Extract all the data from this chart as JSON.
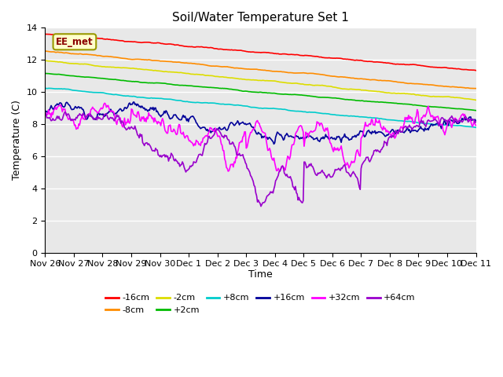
{
  "title": "Soil/Water Temperature Set 1",
  "ylabel": "Temperature (C)",
  "xlabel": "Time",
  "annotation": "EE_met",
  "ylim": [
    0,
    14
  ],
  "background_color": "#ffffff",
  "plot_bg_color": "#e8e8e8",
  "xtick_labels": [
    "Nov 26",
    "Nov 27",
    "Nov 28",
    "Nov 29",
    "Nov 30",
    "Dec 1",
    "Dec 2",
    "Dec 3",
    "Dec 4",
    "Dec 5",
    "Dec 6",
    "Dec 7",
    "Dec 8",
    "Dec 9",
    "Dec 10",
    "Dec 11"
  ],
  "colors": {
    "-16cm": "#ff0000",
    "-8cm": "#ff8c00",
    "-2cm": "#dddd00",
    "+2cm": "#00bb00",
    "+8cm": "#00cccc",
    "+16cm": "#000099",
    "+32cm": "#ff00ff",
    "+64cm": "#9900cc"
  },
  "n_points": 500
}
